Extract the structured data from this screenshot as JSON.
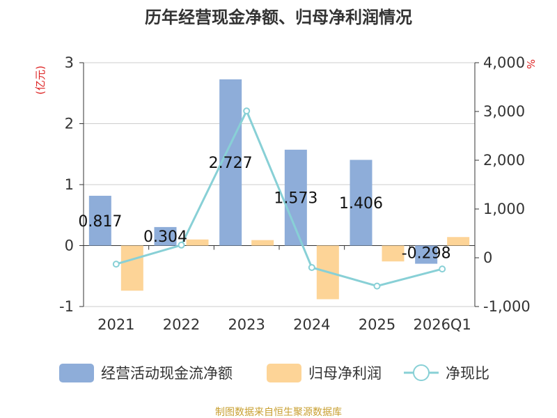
{
  "chart_data": {
    "type": "bar",
    "title": "历年经营现金净额、归母净利润情况",
    "categories": [
      "2021",
      "2022",
      "2023",
      "2024",
      "2025",
      "2026Q1"
    ],
    "y_left": {
      "unit": "(亿元)",
      "min": -1,
      "max": 3,
      "ticks": [
        "3",
        "2",
        "1",
        "0",
        "-1"
      ]
    },
    "y_right": {
      "unit": "%",
      "min": -1000,
      "max": 4000,
      "ticks": [
        "4,000",
        "3,000",
        "2,000",
        "1,000",
        "0",
        "-1,000"
      ]
    },
    "series": [
      {
        "name": "经营活动现金流净额",
        "type": "bar",
        "color": "#8eadd9",
        "values": [
          0.817,
          0.304,
          2.727,
          1.573,
          1.406,
          -0.298
        ],
        "labels": [
          "0.817",
          "0.304",
          "2.727",
          "1.573",
          "1.406",
          "-0.298"
        ]
      },
      {
        "name": "归母净利润",
        "type": "bar",
        "color": "#fdd497",
        "values": [
          -0.74,
          0.1,
          0.09,
          -0.88,
          -0.26,
          0.14
        ]
      },
      {
        "name": "净现比",
        "type": "line",
        "color": "#88d0d6",
        "axis": "right",
        "values": [
          -130,
          260,
          3010,
          -200,
          -580,
          -230
        ]
      }
    ],
    "legend": "bottom",
    "grid": true
  },
  "footer": {
    "source": "制图数据来自恒生聚源数据库"
  }
}
